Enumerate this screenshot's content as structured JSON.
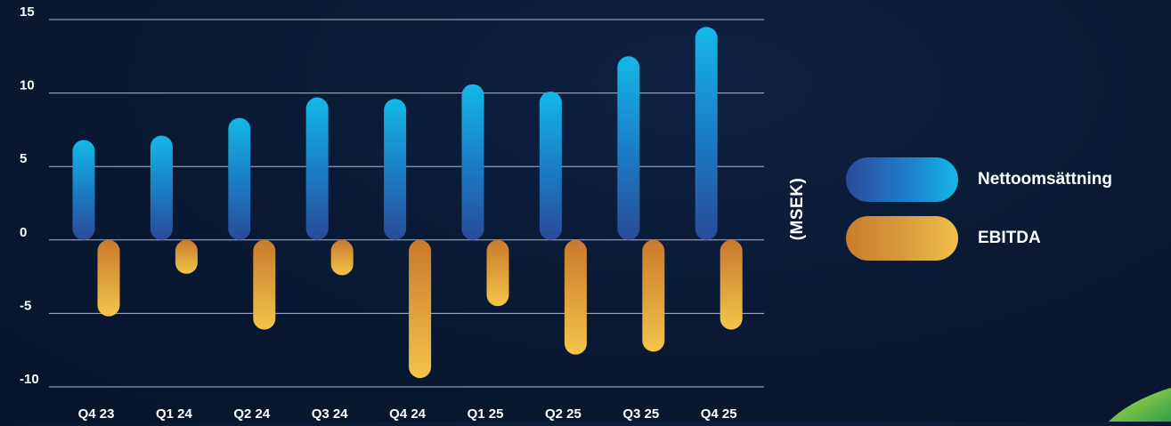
{
  "chart_data": {
    "type": "bar",
    "categories": [
      "Q4 23",
      "Q1 24",
      "Q2 24",
      "Q3 24",
      "Q4 24",
      "Q1 25",
      "Q2 25",
      "Q3 25",
      "Q4 25"
    ],
    "series": [
      {
        "name": "Nettoomsättning",
        "values": [
          6.8,
          7.1,
          8.3,
          9.7,
          9.6,
          10.6,
          10.1,
          12.5,
          14.5
        ],
        "color": "#14b8e6"
      },
      {
        "name": "EBITDA",
        "values": [
          -5.2,
          -2.3,
          -6.1,
          -2.4,
          -9.4,
          -4.5,
          -7.8,
          -7.6,
          -6.1
        ],
        "color": "#f0c04a"
      }
    ],
    "unit_label": "(MSEK)",
    "ylim": [
      -10,
      15
    ],
    "yticks": [
      15,
      10,
      5,
      0,
      -5,
      -10
    ],
    "ytick_labels": [
      "15",
      "10",
      "5",
      "0",
      "-5",
      "-10"
    ],
    "grid": true,
    "legend_position": "right",
    "xlabel": "",
    "ylabel": ""
  }
}
